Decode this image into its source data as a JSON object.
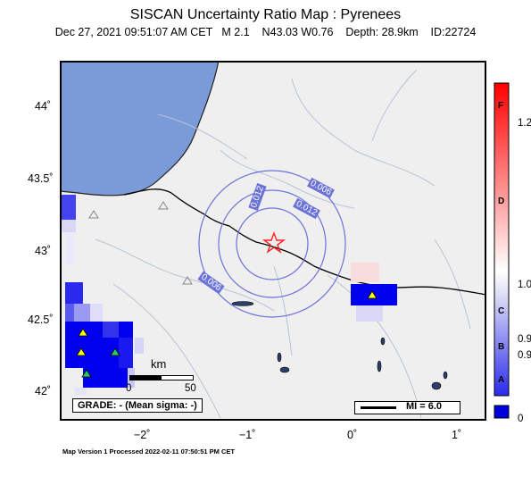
{
  "title": "SISCAN Uncertainty Ratio Map : Pyrenees",
  "subtitle": "Dec 27, 2021 09:51:07 AM CET   M 2.1    N43.03 W0.76    Depth: 28.9km    ID:22724",
  "footer": "Map Version 1 Processed 2022-02-11 07:50:51 PM CET",
  "grade": "GRADE: - (Mean sigma: -)",
  "mi_label": "MI = 6.0",
  "scale_bar": {
    "title": "km",
    "ticks": [
      "0",
      "50"
    ]
  },
  "axes": {
    "y_labels": [
      "44˚",
      "43.5˚",
      "43˚",
      "42.5˚",
      "42˚"
    ],
    "x_labels": [
      "−2˚",
      "−1˚",
      "0˚",
      "1˚"
    ]
  },
  "contours": [
    "0.006",
    "0.012",
    "0.012",
    "0.006"
  ],
  "colorbar": {
    "letters": [
      "F",
      "D",
      "C",
      "B",
      "A"
    ],
    "values": [
      "1.2",
      "1.0",
      "0.9",
      "0.9",
      "0"
    ],
    "colors": {
      "top": "#ff0000",
      "mid": "#ffffff",
      "bottom": "#0000ff"
    }
  },
  "colors": {
    "water": "#7799dd",
    "land": "#f0f0f0",
    "station": "#ffff00",
    "epicenter": "#ff0000"
  }
}
